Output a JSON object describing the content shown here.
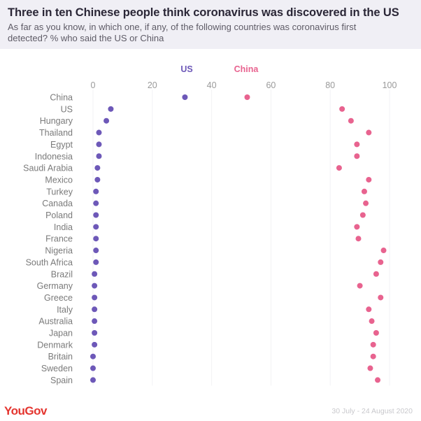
{
  "header": {
    "title": "Three in ten Chinese people think coronavirus was discovered in the US",
    "subtitle": "As far as you know, in which one, if any, of the following countries was coronavirus first detected? % who said the US or China"
  },
  "footer": {
    "logo": "YouGov",
    "date_range": "30 July - 24 August 2020"
  },
  "colors": {
    "us": "#6d58b8",
    "china": "#e8638f",
    "axis_text": "#9a9a9a",
    "label_text": "#7a7a7a"
  },
  "chart_data": {
    "type": "scatter",
    "title": "Three in ten Chinese people think coronavirus was discovered in the US",
    "xlabel": "",
    "ylabel": "",
    "xlim": [
      0,
      100
    ],
    "xticks": [
      0,
      20,
      40,
      60,
      80,
      100
    ],
    "grid": true,
    "legend_position": "top",
    "categories": [
      "China",
      "US",
      "Hungary",
      "Thailand",
      "Egypt",
      "Indonesia",
      "Saudi Arabia",
      "Mexico",
      "Turkey",
      "Canada",
      "Poland",
      "India",
      "France",
      "Nigeria",
      "South Africa",
      "Brazil",
      "Germany",
      "Greece",
      "Italy",
      "Australia",
      "Japan",
      "Denmark",
      "Britain",
      "Sweden",
      "Spain"
    ],
    "series": [
      {
        "name": "US",
        "values": [
          31,
          6,
          4.5,
          2,
          2,
          2,
          1.5,
          1.5,
          1,
          1,
          1,
          1,
          1,
          1,
          1,
          0.5,
          0.5,
          0.5,
          0.5,
          0.5,
          0.5,
          0.5,
          0,
          0,
          0
        ]
      },
      {
        "name": "China",
        "values": [
          52,
          84,
          87,
          93,
          89,
          89,
          83,
          93,
          91.5,
          92,
          91,
          89,
          89.5,
          98,
          97,
          95.5,
          90,
          97,
          93,
          94,
          95.5,
          94.5,
          94.5,
          93.5,
          96
        ]
      }
    ]
  }
}
